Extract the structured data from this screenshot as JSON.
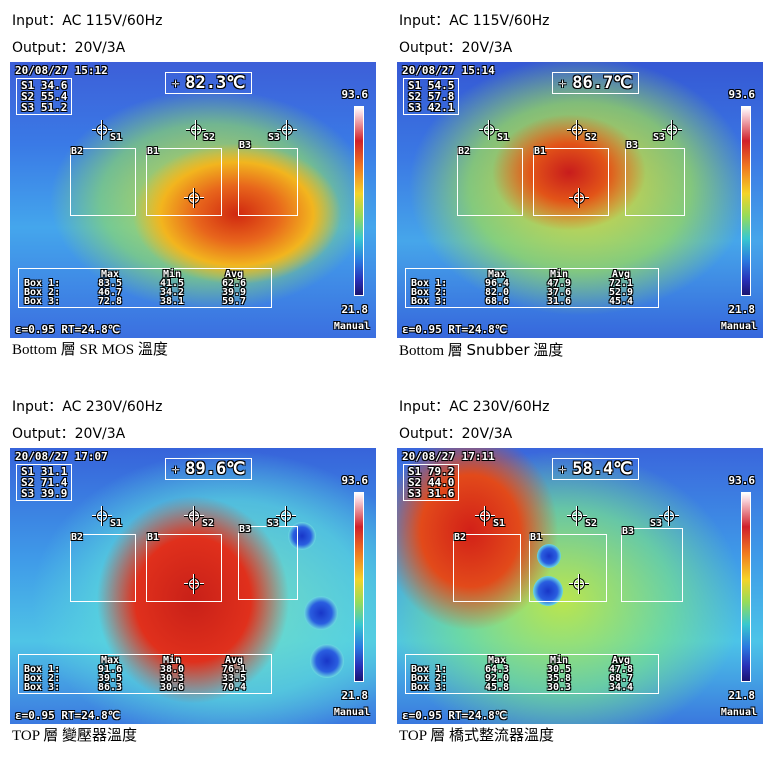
{
  "panels": [
    {
      "input": "Input：AC 115V/60Hz",
      "output": "Output：20V/3A",
      "timestamp": "20/08/27 15:12",
      "center_temp": "82.3",
      "spots": [
        "S1  34.6",
        "S2  55.4",
        "S3  51.2"
      ],
      "scale_max": "93.6",
      "scale_min": "21.8",
      "mode": "Manual",
      "emissivity": "ε=0.95 RT=24.8",
      "stats_header": [
        "",
        "Max",
        "Min",
        "Avg"
      ],
      "stats": [
        [
          "Box 1:",
          "83.5",
          "41.5",
          "62.6"
        ],
        [
          "Box 2:",
          "46.7",
          "34.2",
          "39.9"
        ],
        [
          "Box 3:",
          "72.8",
          "38.1",
          "59.7"
        ]
      ],
      "boxes": [
        "B2",
        "B1",
        "B3"
      ],
      "cross_labels": [
        "S1",
        "S2",
        "S3"
      ],
      "caption_left": "Bottom  層  SR MOS 溫度",
      "caption_mid": "",
      "caption_right": ""
    },
    {
      "input": "Input：AC 115V/60Hz",
      "output": "Output：20V/3A",
      "timestamp": "20/08/27 15:14",
      "center_temp": "86.7",
      "spots": [
        "S1  54.5",
        "S2  57.8",
        "S3  42.1"
      ],
      "scale_max": "93.6",
      "scale_min": "21.8",
      "mode": "Manual",
      "emissivity": "ε=0.95 RT=24.8",
      "stats_header": [
        "",
        "Max",
        "Min",
        "Avg"
      ],
      "stats": [
        [
          "Box 1:",
          "96.4",
          "47.9",
          "72.1"
        ],
        [
          "Box 2:",
          "82.0",
          "37.6",
          "52.9"
        ],
        [
          "Box 3:",
          "68.6",
          "31.6",
          "45.4"
        ]
      ],
      "boxes": [
        "B2",
        "B1",
        "B3"
      ],
      "cross_labels": [
        "S1",
        "S2",
        "S3"
      ],
      "caption_left": "Bottom  層 ",
      "caption_mid": "Snubber",
      "caption_right": " 溫度"
    },
    {
      "input": "Input：AC 230V/60Hz",
      "output": "Output：20V/3A",
      "timestamp": "20/08/27 17:07",
      "center_temp": "89.6",
      "spots": [
        "S1  31.1",
        "S2  71.4",
        "S3  39.9"
      ],
      "scale_max": "93.6",
      "scale_min": "21.8",
      "mode": "Manual",
      "emissivity": "ε=0.95 RT=24.8",
      "stats_header": [
        "",
        "Max",
        "Min",
        "Avg"
      ],
      "stats": [
        [
          "Box 1:",
          "91.6",
          "38.0",
          "76.1"
        ],
        [
          "Box 2:",
          "39.5",
          "30.3",
          "33.5"
        ],
        [
          "Box 3:",
          "86.3",
          "30.6",
          "70.4"
        ]
      ],
      "boxes": [
        "B2",
        "B1",
        "B3"
      ],
      "cross_labels": [
        "S1",
        "S2",
        "S3"
      ],
      "caption_left": "TOP  層  變壓器溫度",
      "caption_mid": "",
      "caption_right": ""
    },
    {
      "input": "Input：AC 230V/60Hz",
      "output": "Output：20V/3A",
      "timestamp": "20/08/27 17:11",
      "center_temp": "58.4",
      "spots": [
        "S1  79.2",
        "S2  44.0",
        "S3  31.6"
      ],
      "scale_max": "93.6",
      "scale_min": "21.8",
      "mode": "Manual",
      "emissivity": "ε=0.95 RT=24.8",
      "stats_header": [
        "",
        "Max",
        "Min",
        "Avg"
      ],
      "stats": [
        [
          "Box 1:",
          "64.3",
          "30.5",
          "47.8"
        ],
        [
          "Box 2:",
          "92.0",
          "35.8",
          "68.7"
        ],
        [
          "Box 3:",
          "45.8",
          "30.3",
          "34.4"
        ]
      ],
      "boxes": [
        "B2",
        "B1",
        "B3"
      ],
      "cross_labels": [
        "S1",
        "S2",
        "S3"
      ],
      "caption_left": "TOP  層  橋式整流器溫度",
      "caption_mid": "",
      "caption_right": ""
    }
  ],
  "unit_symbol": "℃"
}
